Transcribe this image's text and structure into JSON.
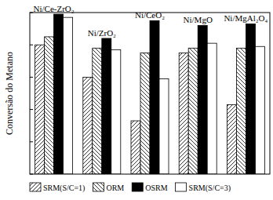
{
  "chart_data": {
    "type": "bar",
    "y_label": "Conversão do Metano",
    "categories": [
      "Ni/Ce-ZrO₂",
      "Ni/ZrO₂",
      "Ni/CeO₂",
      "Ni/MgO",
      "Ni/MgAl₂O₄"
    ],
    "series": [
      {
        "name": "SRM(S/C=1)",
        "color": "#ffffff",
        "values": [
          80,
          60,
          33,
          75,
          43
        ]
      },
      {
        "name": "ORM",
        "color": "#ffffff",
        "values": [
          85,
          78,
          75,
          78,
          78
        ]
      },
      {
        "name": "OSRM",
        "color": "#000000",
        "values": [
          99,
          84,
          95,
          92,
          93
        ]
      },
      {
        "name": "SRM(S/C=3)",
        "color": "#ffffff",
        "values": [
          97,
          77,
          59,
          81,
          79
        ]
      }
    ],
    "ylim": [
      0,
      100
    ],
    "yticks": [
      0,
      20,
      40,
      60,
      80,
      100
    ],
    "tick_labels": false,
    "legend": "bottom"
  }
}
